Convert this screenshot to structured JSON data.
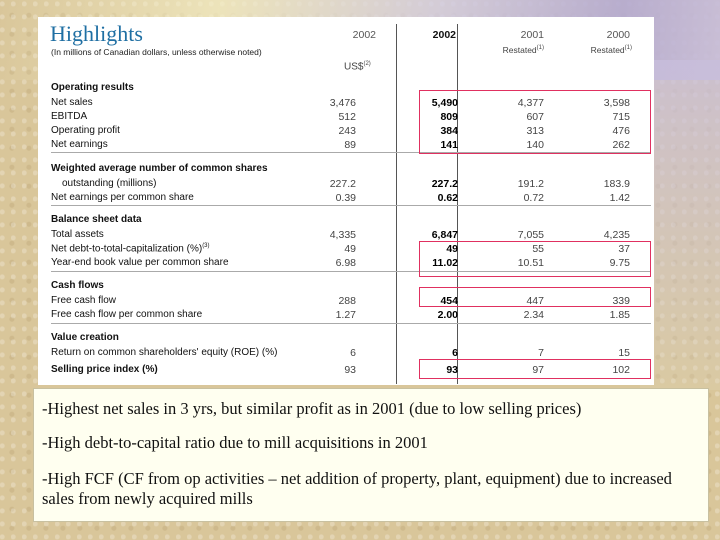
{
  "title": "Highlights",
  "subtitle": "(In millions of Canadian dollars, unless otherwise noted)",
  "columns": [
    {
      "year": "2002",
      "sub": "",
      "emphasis": false
    },
    {
      "year": "2002",
      "sub": "",
      "emphasis": true
    },
    {
      "year": "2001",
      "sub": "Restated",
      "note": "(1)",
      "emphasis": false
    },
    {
      "year": "2000",
      "sub": "Restated",
      "note": "(1)",
      "emphasis": false
    }
  ],
  "currency_label": "US$",
  "currency_note": "(2)",
  "sections": [
    {
      "label": "Operating results",
      "rows": [
        {
          "label": "Net sales",
          "values": [
            "3,476",
            "5,490",
            "4,377",
            "3,598"
          ]
        },
        {
          "label": "EBITDA",
          "values": [
            "512",
            "809",
            "607",
            "715"
          ]
        },
        {
          "label": "Operating profit",
          "values": [
            "243",
            "384",
            "313",
            "476"
          ]
        },
        {
          "label": "Net earnings",
          "values": [
            "89",
            "141",
            "140",
            "262"
          ]
        }
      ]
    },
    {
      "label": "Weighted average number of common shares",
      "rows": [
        {
          "label": "outstanding (millions)",
          "values": [
            "227.2",
            "227.2",
            "191.2",
            "183.9"
          ]
        },
        {
          "label": "Net earnings per common share",
          "values": [
            "0.39",
            "0.62",
            "0.72",
            "1.42"
          ]
        }
      ]
    },
    {
      "label": "Balance sheet data",
      "rows": [
        {
          "label": "Total assets",
          "values": [
            "4,335",
            "6,847",
            "7,055",
            "4,235"
          ]
        },
        {
          "label": "Net debt-to-total-capitalization (%)",
          "note": "(3)",
          "values": [
            "49",
            "49",
            "55",
            "37"
          ]
        },
        {
          "label": "Year-end book value per common share",
          "values": [
            "6.98",
            "11.02",
            "10.51",
            "9.75"
          ]
        }
      ]
    },
    {
      "label": "Cash flows",
      "rows": [
        {
          "label": "Free cash flow",
          "values": [
            "288",
            "454",
            "447",
            "339"
          ]
        },
        {
          "label": "Free cash flow per common share",
          "values": [
            "1.27",
            "2.00",
            "2.34",
            "1.85"
          ]
        }
      ]
    },
    {
      "label": "Value creation",
      "rows": [
        {
          "label": "Return on common shareholders' equity (ROE) (%)",
          "values": [
            "6",
            "6",
            "7",
            "15"
          ]
        },
        {
          "label": "Selling price index (%)",
          "values": [
            "93",
            "93",
            "97",
            "102"
          ],
          "label_bold": true
        }
      ]
    }
  ],
  "notes": [
    "-Highest net sales in 3 yrs, but similar profit as in 2001 (due to low selling prices)",
    "-High debt-to-capital ratio due to mill acquisitions in 2001",
    "-High FCF (CF from op activities – net addition of property, plant, equipment) due to increased sales from newly acquired mills"
  ]
}
